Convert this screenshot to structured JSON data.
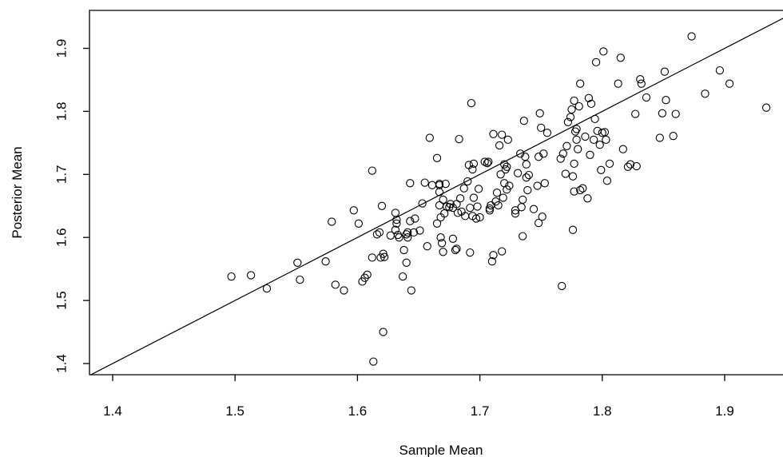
{
  "chart_data": {
    "type": "scatter",
    "xlabel": "Sample Mean",
    "ylabel": "Posterior Mean",
    "xlim": [
      1.38,
      1.96
    ],
    "ylim": [
      1.38,
      1.94
    ],
    "x_ticks": [
      1.4,
      1.5,
      1.6,
      1.7,
      1.8,
      1.9
    ],
    "y_ticks": [
      1.4,
      1.5,
      1.6,
      1.7,
      1.8,
      1.9
    ],
    "x_tick_labels": [
      "1.4",
      "1.5",
      "1.6",
      "1.7",
      "1.8",
      "1.9"
    ],
    "y_tick_labels": [
      "1.4",
      "1.5",
      "1.6",
      "1.7",
      "1.8",
      "1.9"
    ],
    "reference_line": {
      "type": "identity",
      "slope": 1,
      "intercept": 0
    },
    "grid": false,
    "marker": "open-circle",
    "points": [
      [
        1.497,
        1.538
      ],
      [
        1.513,
        1.54
      ],
      [
        1.526,
        1.519
      ],
      [
        1.551,
        1.56
      ],
      [
        1.553,
        1.533
      ],
      [
        1.574,
        1.562
      ],
      [
        1.579,
        1.625
      ],
      [
        1.582,
        1.525
      ],
      [
        1.589,
        1.516
      ],
      [
        1.597,
        1.643
      ],
      [
        1.601,
        1.622
      ],
      [
        1.604,
        1.53
      ],
      [
        1.606,
        1.536
      ],
      [
        1.608,
        1.541
      ],
      [
        1.612,
        1.706
      ],
      [
        1.612,
        1.568
      ],
      [
        1.613,
        1.403
      ],
      [
        1.616,
        1.605
      ],
      [
        1.618,
        1.608
      ],
      [
        1.619,
        1.568
      ],
      [
        1.62,
        1.65
      ],
      [
        1.621,
        1.45
      ],
      [
        1.621,
        1.574
      ],
      [
        1.622,
        1.569
      ],
      [
        1.627,
        1.603
      ],
      [
        1.631,
        1.639
      ],
      [
        1.631,
        1.612
      ],
      [
        1.632,
        1.622
      ],
      [
        1.632,
        1.628
      ],
      [
        1.633,
        1.604
      ],
      [
        1.634,
        1.6
      ],
      [
        1.637,
        1.538
      ],
      [
        1.638,
        1.58
      ],
      [
        1.64,
        1.605
      ],
      [
        1.64,
        1.56
      ],
      [
        1.641,
        1.6
      ],
      [
        1.641,
        1.608
      ],
      [
        1.643,
        1.626
      ],
      [
        1.643,
        1.686
      ],
      [
        1.644,
        1.516
      ],
      [
        1.646,
        1.608
      ],
      [
        1.647,
        1.63
      ],
      [
        1.651,
        1.611
      ],
      [
        1.653,
        1.654
      ],
      [
        1.655,
        1.687
      ],
      [
        1.657,
        1.586
      ],
      [
        1.659,
        1.758
      ],
      [
        1.661,
        1.683
      ],
      [
        1.665,
        1.622
      ],
      [
        1.665,
        1.726
      ],
      [
        1.667,
        1.685
      ],
      [
        1.667,
        1.683
      ],
      [
        1.667,
        1.672
      ],
      [
        1.667,
        1.651
      ],
      [
        1.668,
        1.632
      ],
      [
        1.668,
        1.6
      ],
      [
        1.669,
        1.591
      ],
      [
        1.67,
        1.66
      ],
      [
        1.67,
        1.577
      ],
      [
        1.671,
        1.638
      ],
      [
        1.672,
        1.685
      ],
      [
        1.673,
        1.649
      ],
      [
        1.675,
        1.648
      ],
      [
        1.676,
        1.653
      ],
      [
        1.678,
        1.647
      ],
      [
        1.678,
        1.598
      ],
      [
        1.68,
        1.58
      ],
      [
        1.681,
        1.582
      ],
      [
        1.681,
        1.653
      ],
      [
        1.682,
        1.639
      ],
      [
        1.683,
        1.756
      ],
      [
        1.684,
        1.662
      ],
      [
        1.685,
        1.641
      ],
      [
        1.687,
        1.678
      ],
      [
        1.688,
        1.634
      ],
      [
        1.69,
        1.689
      ],
      [
        1.691,
        1.715
      ],
      [
        1.692,
        1.647
      ],
      [
        1.692,
        1.576
      ],
      [
        1.693,
        1.813
      ],
      [
        1.694,
        1.708
      ],
      [
        1.694,
        1.634
      ],
      [
        1.695,
        1.663
      ],
      [
        1.695,
        1.717
      ],
      [
        1.697,
        1.63
      ],
      [
        1.698,
        1.649
      ],
      [
        1.699,
        1.677
      ],
      [
        1.7,
        1.632
      ],
      [
        1.704,
        1.72
      ],
      [
        1.706,
        1.718
      ],
      [
        1.707,
        1.72
      ],
      [
        1.708,
        1.646
      ],
      [
        1.708,
        1.643
      ],
      [
        1.709,
        1.651
      ],
      [
        1.71,
        1.562
      ],
      [
        1.711,
        1.764
      ],
      [
        1.711,
        1.572
      ],
      [
        1.713,
        1.657
      ],
      [
        1.714,
        1.671
      ],
      [
        1.715,
        1.651
      ],
      [
        1.716,
        1.746
      ],
      [
        1.717,
        1.7
      ],
      [
        1.718,
        1.578
      ],
      [
        1.718,
        1.763
      ],
      [
        1.719,
        1.663
      ],
      [
        1.72,
        1.716
      ],
      [
        1.72,
        1.686
      ],
      [
        1.721,
        1.708
      ],
      [
        1.722,
        1.712
      ],
      [
        1.722,
        1.676
      ],
      [
        1.723,
        1.755
      ],
      [
        1.724,
        1.682
      ],
      [
        1.729,
        1.638
      ],
      [
        1.729,
        1.643
      ],
      [
        1.731,
        1.702
      ],
      [
        1.733,
        1.733
      ],
      [
        1.734,
        1.648
      ],
      [
        1.735,
        1.66
      ],
      [
        1.735,
        1.602
      ],
      [
        1.736,
        1.785
      ],
      [
        1.737,
        1.728
      ],
      [
        1.738,
        1.716
      ],
      [
        1.738,
        1.695
      ],
      [
        1.739,
        1.675
      ],
      [
        1.74,
        1.699
      ],
      [
        1.744,
        1.645
      ],
      [
        1.747,
        1.682
      ],
      [
        1.748,
        1.623
      ],
      [
        1.748,
        1.728
      ],
      [
        1.749,
        1.797
      ],
      [
        1.75,
        1.774
      ],
      [
        1.751,
        1.633
      ],
      [
        1.752,
        1.733
      ],
      [
        1.753,
        1.686
      ],
      [
        1.755,
        1.766
      ],
      [
        1.766,
        1.725
      ],
      [
        1.767,
        1.523
      ],
      [
        1.768,
        1.733
      ],
      [
        1.77,
        1.701
      ],
      [
        1.771,
        1.745
      ],
      [
        1.772,
        1.783
      ],
      [
        1.774,
        1.791
      ],
      [
        1.775,
        1.803
      ],
      [
        1.776,
        1.697
      ],
      [
        1.776,
        1.612
      ],
      [
        1.777,
        1.717
      ],
      [
        1.777,
        1.817
      ],
      [
        1.777,
        1.673
      ],
      [
        1.778,
        1.768
      ],
      [
        1.779,
        1.772
      ],
      [
        1.779,
        1.755
      ],
      [
        1.78,
        1.74
      ],
      [
        1.781,
        1.808
      ],
      [
        1.782,
        1.675
      ],
      [
        1.782,
        1.844
      ],
      [
        1.784,
        1.678
      ],
      [
        1.786,
        1.76
      ],
      [
        1.788,
        1.662
      ],
      [
        1.789,
        1.821
      ],
      [
        1.79,
        1.731
      ],
      [
        1.791,
        1.812
      ],
      [
        1.793,
        1.755
      ],
      [
        1.794,
        1.788
      ],
      [
        1.795,
        1.878
      ],
      [
        1.796,
        1.769
      ],
      [
        1.798,
        1.747
      ],
      [
        1.799,
        1.707
      ],
      [
        1.8,
        1.766
      ],
      [
        1.801,
        1.895
      ],
      [
        1.802,
        1.767
      ],
      [
        1.803,
        1.755
      ],
      [
        1.804,
        1.69
      ],
      [
        1.806,
        1.717
      ],
      [
        1.813,
        1.844
      ],
      [
        1.815,
        1.885
      ],
      [
        1.817,
        1.74
      ],
      [
        1.821,
        1.712
      ],
      [
        1.823,
        1.716
      ],
      [
        1.827,
        1.796
      ],
      [
        1.828,
        1.713
      ],
      [
        1.831,
        1.851
      ],
      [
        1.832,
        1.844
      ],
      [
        1.836,
        1.822
      ],
      [
        1.847,
        1.758
      ],
      [
        1.849,
        1.797
      ],
      [
        1.851,
        1.863
      ],
      [
        1.852,
        1.818
      ],
      [
        1.858,
        1.761
      ],
      [
        1.86,
        1.796
      ],
      [
        1.873,
        1.919
      ],
      [
        1.884,
        1.828
      ],
      [
        1.896,
        1.865
      ],
      [
        1.904,
        1.844
      ],
      [
        1.934,
        1.806
      ]
    ]
  }
}
